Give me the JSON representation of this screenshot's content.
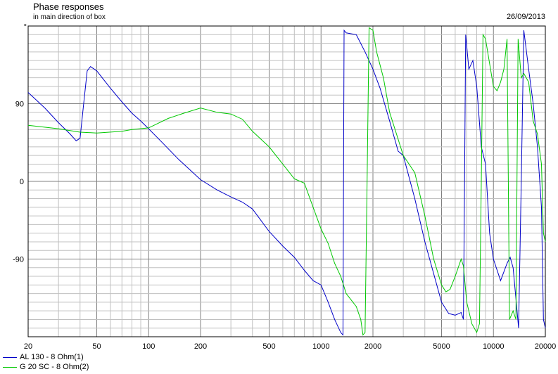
{
  "header": {
    "title": "Phase responses",
    "subtitle": "in main direction of box",
    "date": "26/09/2013",
    "top_marker": "°"
  },
  "legend": [
    {
      "label": "AL 130 - 8 Ohm(1)",
      "color": "#0000c8"
    },
    {
      "label": "G 20 SC - 8 Ohm(2)",
      "color": "#00c800"
    }
  ],
  "chart_data": {
    "type": "line",
    "xscale": "log",
    "xlim": [
      20,
      20000
    ],
    "ylim": [
      -180,
      180
    ],
    "grid": true,
    "legend_position": "bottom-left",
    "x_ticks": [
      20,
      50,
      100,
      200,
      500,
      1000,
      2000,
      5000,
      10000,
      20000
    ],
    "x_tick_labels": [
      "20",
      "50",
      "100",
      "200",
      "500",
      "1000",
      "2000",
      "5000",
      "10000",
      "20000"
    ],
    "y_ticks": [
      90,
      0,
      -90
    ],
    "y_tick_labels": [
      "90",
      "0",
      "-90"
    ],
    "series": [
      {
        "name": "AL 130 - 8 Ohm(1)",
        "color": "#0000c8",
        "points": [
          [
            20,
            103
          ],
          [
            25,
            85
          ],
          [
            30,
            68
          ],
          [
            35,
            55
          ],
          [
            38,
            47
          ],
          [
            40,
            50
          ],
          [
            42,
            90
          ],
          [
            44,
            128
          ],
          [
            46,
            133
          ],
          [
            50,
            128
          ],
          [
            60,
            108
          ],
          [
            70,
            92
          ],
          [
            80,
            79
          ],
          [
            90,
            70
          ],
          [
            100,
            61
          ],
          [
            120,
            45
          ],
          [
            150,
            25
          ],
          [
            200,
            2
          ],
          [
            250,
            -10
          ],
          [
            300,
            -18
          ],
          [
            350,
            -24
          ],
          [
            400,
            -32
          ],
          [
            500,
            -58
          ],
          [
            600,
            -75
          ],
          [
            700,
            -88
          ],
          [
            800,
            -103
          ],
          [
            900,
            -115
          ],
          [
            1000,
            -120
          ],
          [
            1100,
            -140
          ],
          [
            1200,
            -160
          ],
          [
            1300,
            -175
          ],
          [
            1340,
            -178
          ],
          [
            1350,
            0
          ],
          [
            1360,
            175
          ],
          [
            1400,
            172
          ],
          [
            1600,
            170
          ],
          [
            1800,
            150
          ],
          [
            2000,
            130
          ],
          [
            2200,
            108
          ],
          [
            2500,
            70
          ],
          [
            2800,
            35
          ],
          [
            3000,
            30
          ],
          [
            3500,
            -20
          ],
          [
            4000,
            -70
          ],
          [
            5000,
            -140
          ],
          [
            5500,
            -153
          ],
          [
            6000,
            -155
          ],
          [
            6500,
            -152
          ],
          [
            6700,
            -160
          ],
          [
            6800,
            0
          ],
          [
            6900,
            170
          ],
          [
            7200,
            130
          ],
          [
            7600,
            140
          ],
          [
            8000,
            110
          ],
          [
            8500,
            40
          ],
          [
            9000,
            20
          ],
          [
            9500,
            -60
          ],
          [
            10000,
            -90
          ],
          [
            11000,
            -115
          ],
          [
            12000,
            -95
          ],
          [
            12500,
            -88
          ],
          [
            13000,
            -100
          ],
          [
            14000,
            -170
          ],
          [
            14500,
            0
          ],
          [
            15000,
            175
          ],
          [
            16000,
            130
          ],
          [
            17000,
            90
          ],
          [
            18000,
            40
          ],
          [
            19000,
            -30
          ],
          [
            19500,
            -160
          ],
          [
            20000,
            -170
          ]
        ]
      },
      {
        "name": "G 20 SC - 8 Ohm(2)",
        "color": "#00c800",
        "points": [
          [
            20,
            65
          ],
          [
            30,
            61
          ],
          [
            40,
            57
          ],
          [
            50,
            56
          ],
          [
            70,
            58
          ],
          [
            80,
            60
          ],
          [
            100,
            62
          ],
          [
            130,
            73
          ],
          [
            160,
            79
          ],
          [
            200,
            85
          ],
          [
            250,
            80
          ],
          [
            300,
            78
          ],
          [
            350,
            72
          ],
          [
            400,
            58
          ],
          [
            500,
            40
          ],
          [
            600,
            20
          ],
          [
            700,
            3
          ],
          [
            800,
            -2
          ],
          [
            900,
            -30
          ],
          [
            1000,
            -55
          ],
          [
            1100,
            -72
          ],
          [
            1200,
            -95
          ],
          [
            1300,
            -110
          ],
          [
            1400,
            -130
          ],
          [
            1600,
            -145
          ],
          [
            1700,
            -160
          ],
          [
            1750,
            -178
          ],
          [
            1800,
            -175
          ],
          [
            1850,
            0
          ],
          [
            1900,
            178
          ],
          [
            2000,
            175
          ],
          [
            2100,
            150
          ],
          [
            2300,
            120
          ],
          [
            2500,
            80
          ],
          [
            3000,
            30
          ],
          [
            3500,
            10
          ],
          [
            4000,
            -40
          ],
          [
            4500,
            -90
          ],
          [
            5000,
            -120
          ],
          [
            5300,
            -128
          ],
          [
            5600,
            -125
          ],
          [
            6000,
            -110
          ],
          [
            6500,
            -90
          ],
          [
            6700,
            -98
          ],
          [
            7000,
            -140
          ],
          [
            7500,
            -165
          ],
          [
            8000,
            -175
          ],
          [
            8300,
            -165
          ],
          [
            8500,
            0
          ],
          [
            8700,
            170
          ],
          [
            9000,
            165
          ],
          [
            10000,
            110
          ],
          [
            10500,
            105
          ],
          [
            11000,
            115
          ],
          [
            11500,
            130
          ],
          [
            12000,
            165
          ],
          [
            12200,
            0
          ],
          [
            12400,
            -160
          ],
          [
            13000,
            -150
          ],
          [
            13500,
            -160
          ],
          [
            13700,
            0
          ],
          [
            13900,
            165
          ],
          [
            14500,
            120
          ],
          [
            15000,
            125
          ],
          [
            16000,
            115
          ],
          [
            17000,
            70
          ],
          [
            18000,
            55
          ],
          [
            19000,
            20
          ],
          [
            19500,
            -60
          ],
          [
            20000,
            -70
          ]
        ]
      }
    ]
  }
}
